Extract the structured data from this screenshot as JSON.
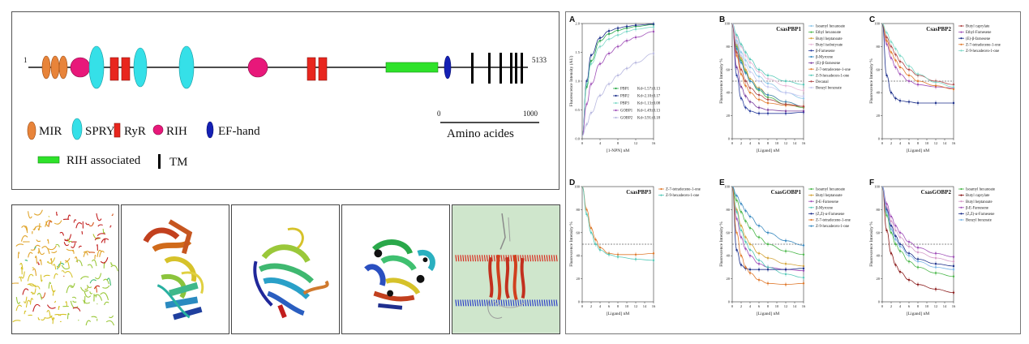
{
  "domain_map": {
    "start_label": "1",
    "end_label": "5133",
    "scale_start": "0",
    "scale_end": "1000",
    "scale_caption": "Amino acides",
    "legend": {
      "mir": "MIR",
      "spry": "SPRY",
      "ryr": "RyR",
      "rih": "RIH",
      "ef_hand": "EF-hand",
      "rih_associated": "RIH associated",
      "tm": "TM"
    },
    "colors": {
      "mir": "#e8843a",
      "spry": "#35e0e8",
      "ryr": "#e8261e",
      "rih": "#e8187a",
      "ef_hand": "#1420b4",
      "rih_associated": "#2ee22a",
      "tm": "#000000"
    }
  },
  "structures": [
    {
      "name": "ryanodine-receptor-tetramer"
    },
    {
      "name": "domain-model-2"
    },
    {
      "name": "domain-model-3"
    },
    {
      "name": "domain-model-4"
    },
    {
      "name": "membrane-model",
      "background": "#cfe6cc"
    }
  ],
  "chart_data": [
    {
      "panel": "A",
      "type": "line",
      "title": "",
      "xlabel": "[1-NPN] nM",
      "ylabel": "Fluorescence Intensity (AU)",
      "xlim": [
        0,
        16
      ],
      "ylim": [
        0,
        2.0
      ],
      "x_ticks": [
        "0",
        "4",
        "8",
        "12",
        "16"
      ],
      "y_ticks": [
        "0.0",
        "0.5",
        "1.0",
        "1.5",
        "2.0"
      ],
      "x": [
        0,
        1,
        2,
        4,
        6,
        8,
        10,
        12,
        16
      ],
      "series": [
        {
          "name": "PBP1",
          "label": "Kd=1.57±0.13",
          "color": "#2aa84a",
          "values": [
            0.05,
            0.9,
            1.35,
            1.7,
            1.82,
            1.88,
            1.92,
            1.95,
            1.98
          ]
        },
        {
          "name": "PBP2",
          "label": "Kd=2.10±0.17",
          "color": "#1c2f8a",
          "values": [
            0.05,
            1.0,
            1.45,
            1.75,
            1.87,
            1.92,
            1.95,
            1.97,
            1.99
          ]
        },
        {
          "name": "PBP3",
          "label": "Kd=1.13±0.08",
          "color": "#7fd9c8",
          "values": [
            0.05,
            0.95,
            1.3,
            1.6,
            1.73,
            1.8,
            1.86,
            1.9,
            1.94
          ]
        },
        {
          "name": "GOBP1",
          "label": "Kd=1.49±0.13",
          "color": "#a050b8",
          "values": [
            0.05,
            0.6,
            0.95,
            1.3,
            1.48,
            1.6,
            1.7,
            1.76,
            1.86
          ]
        },
        {
          "name": "GOBP2",
          "label": "Kd=3.91±0.18",
          "color": "#b8b8e0",
          "values": [
            0.05,
            0.25,
            0.45,
            0.75,
            0.95,
            1.1,
            1.22,
            1.32,
            1.48
          ]
        }
      ]
    },
    {
      "panel": "B",
      "type": "line",
      "title": "CsasPBP1",
      "xlabel": "[Ligand] nM",
      "ylabel": "Fluorescence Intensity %",
      "xlim": [
        0,
        16
      ],
      "ylim": [
        0,
        100
      ],
      "x_ticks": [
        "0",
        "2",
        "4",
        "6",
        "8",
        "10",
        "12",
        "14",
        "16"
      ],
      "y_ticks": [
        "0",
        "20",
        "40",
        "60",
        "80",
        "100"
      ],
      "x": [
        0,
        1,
        2,
        3,
        4,
        6,
        8,
        12,
        16
      ],
      "series": [
        {
          "name": "Isoamyl hexanoate",
          "color": "#8fc7e8",
          "values": [
            100,
            85,
            75,
            68,
            62,
            54,
            48,
            40,
            35
          ]
        },
        {
          "name": "Ethyl hexanoate",
          "color": "#4cb84c",
          "values": [
            100,
            80,
            68,
            58,
            50,
            42,
            36,
            30,
            27
          ]
        },
        {
          "name": "Butyl heptanoate",
          "color": "#d4a43a",
          "values": [
            100,
            82,
            70,
            60,
            52,
            44,
            38,
            32,
            28
          ]
        },
        {
          "name": "Butyl isobutyrate",
          "color": "#e8b8d8",
          "values": [
            100,
            88,
            80,
            72,
            66,
            58,
            52,
            46,
            42
          ]
        },
        {
          "name": "β-Farnesene",
          "color": "#2a3e9e",
          "values": [
            100,
            55,
            35,
            27,
            24,
            22,
            22,
            22,
            23
          ]
        },
        {
          "name": "β-Myrcene",
          "color": "#3a8ac0",
          "values": [
            100,
            78,
            66,
            57,
            50,
            43,
            38,
            32,
            28
          ]
        },
        {
          "name": "(E)-β-farnesene",
          "color": "#7a3e9e",
          "values": [
            100,
            62,
            45,
            37,
            32,
            27,
            25,
            24,
            24
          ]
        },
        {
          "name": "Z-7-tetradecene-1-one",
          "color": "#e07a2e",
          "values": [
            100,
            72,
            56,
            46,
            40,
            34,
            31,
            29,
            28
          ]
        },
        {
          "name": "Z-9-hexadecen-1-one",
          "color": "#57c9b8",
          "values": [
            100,
            90,
            82,
            75,
            69,
            60,
            55,
            50,
            47
          ]
        },
        {
          "name": "Decanal",
          "color": "#b04a4a",
          "values": [
            100,
            75,
            60,
            50,
            44,
            38,
            34,
            30,
            28
          ]
        },
        {
          "name": "Benzyl benzoate",
          "color": "#c8c8f0",
          "values": [
            100,
            83,
            72,
            64,
            58,
            50,
            45,
            40,
            37
          ]
        }
      ]
    },
    {
      "panel": "C",
      "type": "line",
      "title": "CsasPBP2",
      "xlabel": "[Ligand] nM",
      "ylabel": "Fluorescence Intensity %",
      "xlim": [
        0,
        16
      ],
      "ylim": [
        0,
        100
      ],
      "x_ticks": [
        "0",
        "2",
        "4",
        "6",
        "8",
        "10",
        "12",
        "14",
        "16"
      ],
      "y_ticks": [
        "0",
        "20",
        "40",
        "60",
        "80",
        "100"
      ],
      "x": [
        0,
        1,
        2,
        3,
        4,
        6,
        8,
        12,
        16
      ],
      "series": [
        {
          "name": "Butyl caprylate",
          "color": "#b04a4a",
          "values": [
            100,
            88,
            80,
            73,
            67,
            60,
            55,
            50,
            47
          ]
        },
        {
          "name": "Ethyl-Farnesene",
          "color": "#a050b8",
          "values": [
            100,
            82,
            70,
            62,
            56,
            50,
            47,
            45,
            44
          ]
        },
        {
          "name": "(E)-β-farnesene",
          "color": "#1c2f8a",
          "values": [
            100,
            55,
            40,
            35,
            33,
            32,
            31,
            31,
            31
          ]
        },
        {
          "name": "Z-7-tetradecene-1-one",
          "color": "#e07a2e",
          "values": [
            100,
            85,
            75,
            68,
            62,
            55,
            50,
            46,
            43
          ]
        },
        {
          "name": "Z-9-hexadecen-1-one",
          "color": "#7fd9c8",
          "values": [
            100,
            92,
            84,
            78,
            72,
            63,
            56,
            49,
            45
          ]
        }
      ]
    },
    {
      "panel": "D",
      "type": "line",
      "title": "CsasPBP3",
      "xlabel": "[Ligand] nM",
      "ylabel": "Fluorescence Intensity %",
      "xlim": [
        0,
        16
      ],
      "ylim": [
        0,
        100
      ],
      "x_ticks": [
        "0",
        "2",
        "4",
        "6",
        "8",
        "10",
        "12",
        "14",
        "16"
      ],
      "y_ticks": [
        "0",
        "20",
        "40",
        "60",
        "80",
        "100"
      ],
      "x": [
        0,
        1,
        2,
        3,
        4,
        6,
        8,
        12,
        16
      ],
      "series": [
        {
          "name": "Z-7-tetradecene-1-one",
          "color": "#e07a2e",
          "values": [
            100,
            80,
            64,
            54,
            47,
            42,
            41,
            41,
            42
          ]
        },
        {
          "name": "Z-9-hexadecen-1-one",
          "color": "#57c9b8",
          "values": [
            100,
            76,
            60,
            50,
            45,
            41,
            39,
            37,
            36
          ]
        }
      ]
    },
    {
      "panel": "E",
      "type": "line",
      "title": "CsasGOBP1",
      "xlabel": "[Ligand] nM",
      "ylabel": "Fluorescence Intensity %",
      "xlim": [
        0,
        16
      ],
      "ylim": [
        0,
        100
      ],
      "x_ticks": [
        "0",
        "2",
        "4",
        "6",
        "8",
        "10",
        "12",
        "14",
        "16"
      ],
      "y_ticks": [
        "0",
        "20",
        "40",
        "60",
        "80",
        "100"
      ],
      "x": [
        0,
        1,
        2,
        3,
        4,
        6,
        8,
        12,
        16
      ],
      "series": [
        {
          "name": "Isoamyl hexanoate",
          "color": "#4cb84c",
          "values": [
            100,
            88,
            78,
            70,
            64,
            56,
            50,
            44,
            41
          ]
        },
        {
          "name": "Butyl heptanoate",
          "color": "#d4a43a",
          "values": [
            100,
            80,
            66,
            56,
            50,
            42,
            38,
            33,
            31
          ]
        },
        {
          "name": "β-E-Farnesene",
          "color": "#a050b8",
          "values": [
            100,
            72,
            56,
            46,
            40,
            33,
            30,
            28,
            27
          ]
        },
        {
          "name": "β-Myrcene",
          "color": "#57c9b8",
          "values": [
            100,
            78,
            62,
            52,
            45,
            36,
            30,
            24,
            21
          ]
        },
        {
          "name": "(Z,Z)-α-Farnesene",
          "color": "#1c2f8a",
          "values": [
            100,
            45,
            32,
            29,
            28,
            28,
            28,
            28,
            29
          ]
        },
        {
          "name": "Z-7-tetradecene-1-one",
          "color": "#e07a2e",
          "values": [
            100,
            60,
            40,
            30,
            25,
            19,
            16,
            15,
            16
          ]
        },
        {
          "name": "Z-9-hexadecen-1-one",
          "color": "#3a8ac0",
          "values": [
            100,
            92,
            85,
            79,
            74,
            66,
            60,
            53,
            49
          ]
        }
      ]
    },
    {
      "panel": "F",
      "type": "line",
      "title": "CsasGOBP2",
      "xlabel": "[Ligand] nM",
      "ylabel": "Fluorescence Intensity %",
      "xlim": [
        0,
        16
      ],
      "ylim": [
        0,
        100
      ],
      "x_ticks": [
        "0",
        "2",
        "4",
        "6",
        "8",
        "10",
        "12",
        "14",
        "16"
      ],
      "y_ticks": [
        "0",
        "20",
        "40",
        "60",
        "80",
        "100"
      ],
      "x": [
        0,
        1,
        2,
        3,
        4,
        6,
        8,
        12,
        16
      ],
      "series": [
        {
          "name": "Isoamyl hexanoate",
          "color": "#4cb84c",
          "values": [
            100,
            75,
            60,
            50,
            44,
            35,
            30,
            25,
            22
          ]
        },
        {
          "name": "Butyl caprylate",
          "color": "#8a1a1a",
          "values": [
            100,
            62,
            42,
            32,
            26,
            19,
            15,
            11,
            8
          ]
        },
        {
          "name": "Butyl heptanoate",
          "color": "#d49ac8",
          "values": [
            100,
            82,
            70,
            62,
            56,
            48,
            43,
            38,
            35
          ]
        },
        {
          "name": "β-E-Farnesene",
          "color": "#a050b8",
          "values": [
            100,
            85,
            74,
            66,
            60,
            52,
            47,
            42,
            39
          ]
        },
        {
          "name": "(Z,Z)-α-Farnesene",
          "color": "#1c2f8a",
          "values": [
            100,
            80,
            66,
            57,
            50,
            42,
            37,
            33,
            31
          ]
        },
        {
          "name": "Benzyl benzoate",
          "color": "#7fb8e8",
          "values": [
            100,
            78,
            63,
            54,
            48,
            40,
            35,
            30,
            28
          ]
        }
      ]
    }
  ]
}
